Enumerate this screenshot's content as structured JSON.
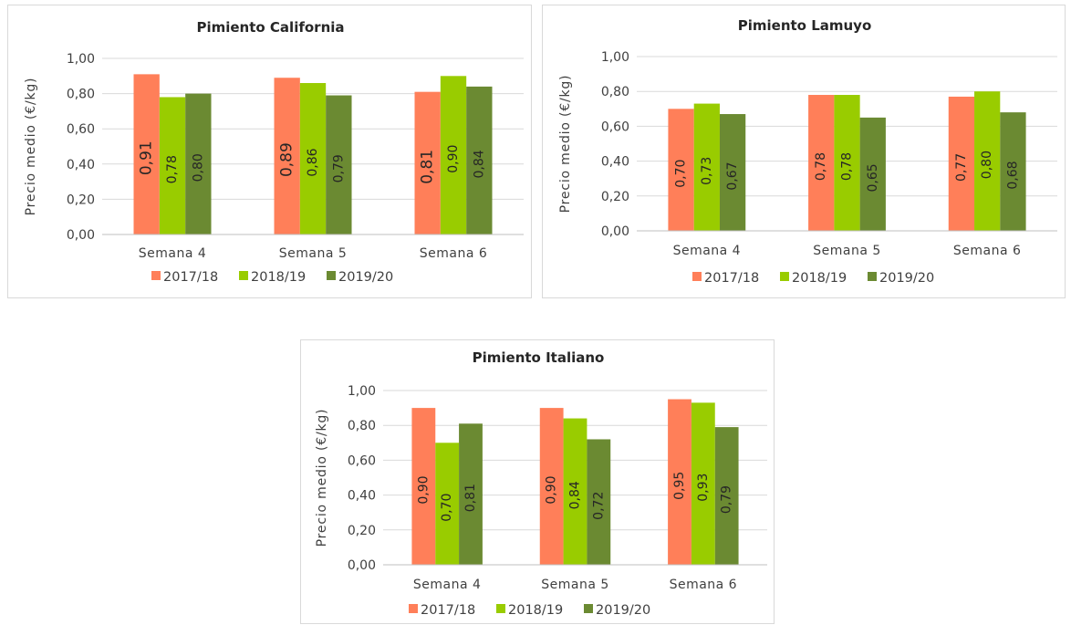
{
  "chart_data": [
    {
      "type": "bar",
      "title": "Pimiento California",
      "ylabel": "Precio medio  (€/kg)",
      "xlabel": "",
      "categories": [
        "Semana 4",
        "Semana 5",
        "Semana 6"
      ],
      "ylim": [
        0,
        1
      ],
      "yticks": [
        "0,00",
        "0,20",
        "0,40",
        "0,60",
        "0,80",
        "1,00"
      ],
      "grid": true,
      "legend_position": "bottom",
      "series": [
        {
          "name": "2017/18",
          "color": "#ff7f59",
          "values": [
            0.91,
            0.89,
            0.81
          ],
          "labels": [
            "0,91",
            "0,89",
            "0,81"
          ]
        },
        {
          "name": "2018/19",
          "color": "#99cc00",
          "values": [
            0.78,
            0.86,
            0.9
          ],
          "labels": [
            "0,78",
            "0,86",
            "0,90"
          ]
        },
        {
          "name": "2019/20",
          "color": "#6b8a32",
          "values": [
            0.8,
            0.79,
            0.84
          ],
          "labels": [
            "0,80",
            "0,79",
            "0,84"
          ]
        }
      ]
    },
    {
      "type": "bar",
      "title": "Pimiento Lamuyo",
      "ylabel": "Precio medio  (€/kg)",
      "xlabel": "",
      "categories": [
        "Semana 4",
        "Semana 5",
        "Semana 6"
      ],
      "ylim": [
        0,
        1
      ],
      "yticks": [
        "0,00",
        "0,20",
        "0,40",
        "0,60",
        "0,80",
        "1,00"
      ],
      "grid": true,
      "legend_position": "bottom",
      "series": [
        {
          "name": "2017/18",
          "color": "#ff7f59",
          "values": [
            0.7,
            0.78,
            0.77
          ],
          "labels": [
            "0,70",
            "0,78",
            "0,77"
          ]
        },
        {
          "name": "2018/19",
          "color": "#99cc00",
          "values": [
            0.73,
            0.78,
            0.8
          ],
          "labels": [
            "0,73",
            "0,78",
            "0,80"
          ]
        },
        {
          "name": "2019/20",
          "color": "#6b8a32",
          "values": [
            0.67,
            0.65,
            0.68
          ],
          "labels": [
            "0,67",
            "0,65",
            "0,68"
          ]
        }
      ]
    },
    {
      "type": "bar",
      "title": "Pimiento Italiano",
      "ylabel": "Precio medio  (€/kg)",
      "xlabel": "",
      "categories": [
        "Semana 4",
        "Semana 5",
        "Semana 6"
      ],
      "ylim": [
        0,
        1
      ],
      "yticks": [
        "0,00",
        "0,20",
        "0,40",
        "0,60",
        "0,80",
        "1,00"
      ],
      "grid": true,
      "legend_position": "bottom",
      "series": [
        {
          "name": "2017/18",
          "color": "#ff7f59",
          "values": [
            0.9,
            0.9,
            0.95
          ],
          "labels": [
            "0,90",
            "0,90",
            "0,95"
          ]
        },
        {
          "name": "2018/19",
          "color": "#99cc00",
          "values": [
            0.7,
            0.84,
            0.93
          ],
          "labels": [
            "0,70",
            "0,84",
            "0,93"
          ]
        },
        {
          "name": "2019/20",
          "color": "#6b8a32",
          "values": [
            0.81,
            0.72,
            0.79
          ],
          "labels": [
            "0,81",
            "0,72",
            "0,79"
          ]
        }
      ]
    }
  ]
}
